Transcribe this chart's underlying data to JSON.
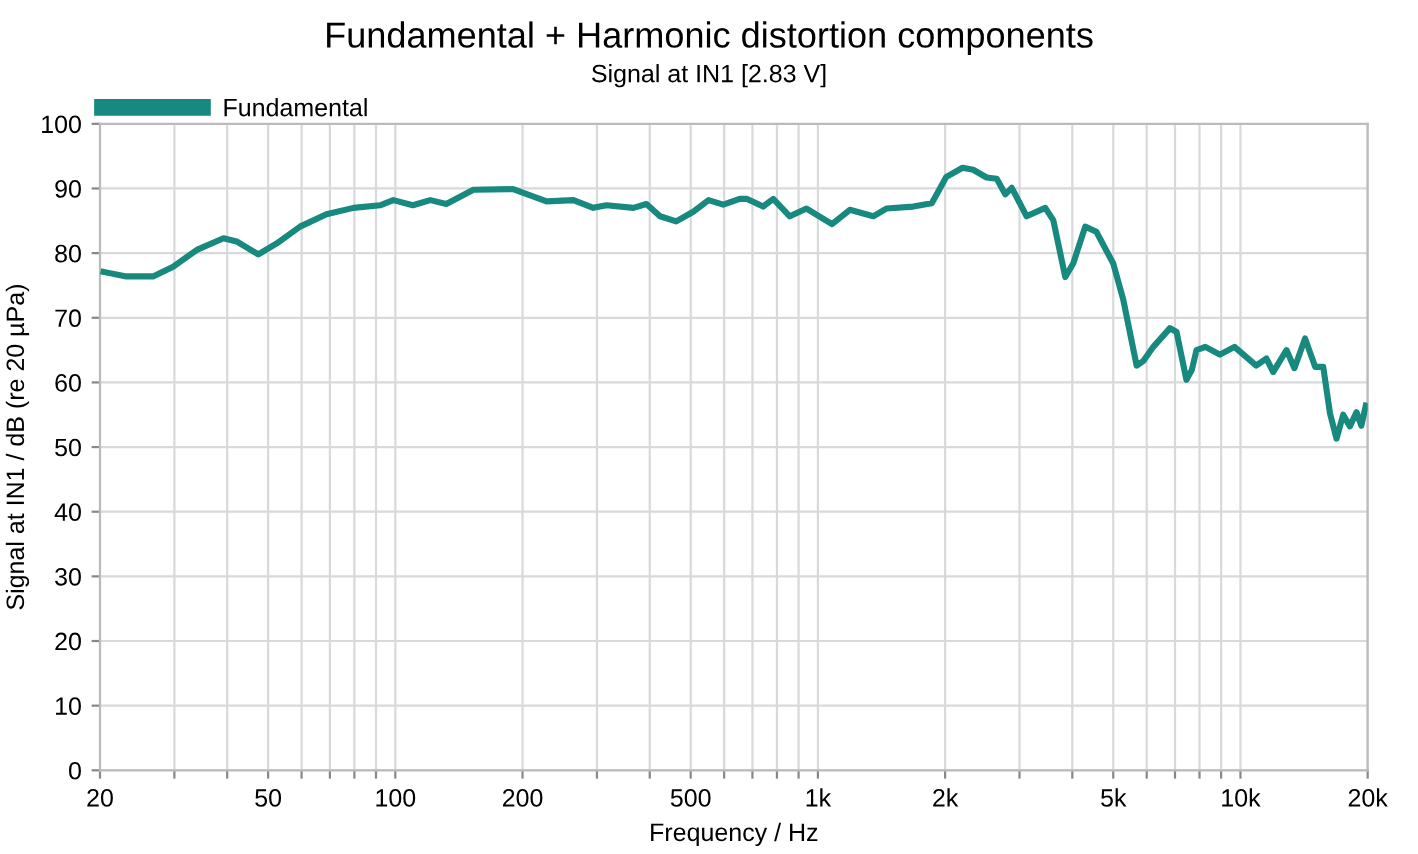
{
  "chart_data": {
    "type": "line",
    "title": "Fundamental + Harmonic distortion components",
    "subtitle": "Signal at IN1 [2.83 V]",
    "xlabel": "Frequency / Hz",
    "ylabel": "Signal at IN1 / dB (re 20 µPa)",
    "log": "x",
    "xlim": [
      20,
      20000
    ],
    "ylim": [
      0,
      100
    ],
    "xticks": [
      20,
      {
        "value": 30,
        "label": null
      },
      {
        "value": 40,
        "label": null
      },
      50,
      {
        "value": 60,
        "label": null
      },
      {
        "value": 70,
        "label": null
      },
      {
        "value": 80,
        "label": null
      },
      {
        "value": 90,
        "label": null
      },
      100,
      200,
      {
        "value": 300,
        "label": null
      },
      {
        "value": 400,
        "label": null
      },
      500,
      {
        "value": 600,
        "label": null
      },
      {
        "value": 700,
        "label": null
      },
      {
        "value": 800,
        "label": null
      },
      {
        "value": 900,
        "label": null
      },
      {
        "value": 1000,
        "label": "1k"
      },
      {
        "value": 2000,
        "label": "2k"
      },
      {
        "value": 3000,
        "label": null
      },
      {
        "value": 4000,
        "label": null
      },
      {
        "value": 5000,
        "label": "5k"
      },
      {
        "value": 6000,
        "label": null
      },
      {
        "value": 7000,
        "label": null
      },
      {
        "value": 8000,
        "label": null
      },
      {
        "value": 9000,
        "label": null
      },
      {
        "value": 10000,
        "label": "10k"
      },
      {
        "value": 20000,
        "label": "20k"
      }
    ],
    "yticks": [
      0,
      10,
      20,
      30,
      40,
      50,
      60,
      70,
      80,
      90,
      100
    ],
    "grid": true,
    "legend": "top left",
    "marker": "none",
    "line_style": "solid",
    "series": [
      {
        "name": "Fundamental",
        "color": "#17897f",
        "x": [
          20.4,
          23.1,
          26.7,
          29.8,
          33.9,
          39.2,
          42.1,
          47.4,
          52.4,
          59.5,
          68.7,
          79.6,
          92,
          98.9,
          110,
          121,
          132,
          153,
          190,
          228,
          264,
          294,
          316,
          366,
          393,
          423,
          462,
          507,
          551,
          597,
          653,
          678,
          742,
          784,
          858,
          940,
          1080,
          1190,
          1352,
          1452,
          1680,
          1860,
          2014,
          2200,
          2330,
          2508,
          2650,
          2776,
          2876,
          3118,
          3452,
          3606,
          3850,
          4020,
          4292,
          4560,
          5000,
          5280,
          5680,
          5890,
          6220,
          6810,
          7060,
          7450,
          7670,
          7870,
          8260,
          8940,
          9680,
          10900,
          11520,
          11950,
          12850,
          13420,
          14220,
          15030,
          15700,
          16290,
          16880,
          17500,
          18150,
          18830,
          19320,
          19800
        ],
        "values": [
          77.1,
          76.4,
          76.4,
          77.9,
          80.5,
          82.3,
          81.8,
          79.8,
          81.5,
          84.1,
          86.0,
          87.0,
          87.4,
          88.2,
          87.4,
          88.2,
          87.6,
          89.8,
          89.9,
          88.0,
          88.2,
          87.0,
          87.4,
          87.0,
          87.6,
          85.7,
          84.9,
          86.4,
          88.2,
          87.5,
          88.4,
          88.4,
          87.2,
          88.4,
          85.7,
          86.9,
          84.5,
          86.7,
          85.7,
          86.9,
          87.2,
          87.7,
          91.8,
          93.2,
          92.9,
          91.7,
          91.5,
          89.1,
          90.1,
          85.7,
          87.0,
          85.1,
          76.3,
          78.4,
          84.1,
          83.3,
          78.4,
          72.8,
          62.6,
          63.3,
          65.5,
          68.4,
          67.8,
          60.4,
          61.9,
          65.0,
          65.5,
          64.3,
          65.5,
          62.6,
          63.7,
          61.6,
          65.0,
          62.2,
          66.8,
          62.4,
          62.4,
          55.2,
          51.3,
          55.0,
          53.2,
          55.4,
          53.3,
          56.4
        ]
      }
    ]
  }
}
